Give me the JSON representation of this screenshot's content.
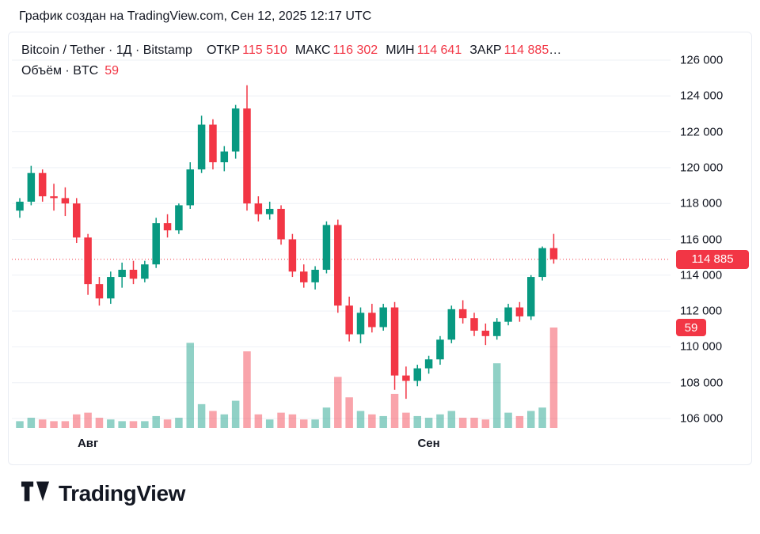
{
  "header": {
    "title": "График создан на TradingView.com, Сен 12, 2025 12:17 UTC"
  },
  "legend": {
    "series_title": "Bitcoin / Tether · 1Д · Bitstamp",
    "fields": [
      {
        "label": "ОТКР",
        "value": "115 510"
      },
      {
        "label": "МАКС",
        "value": "116 302"
      },
      {
        "label": "МИН",
        "value": "114 641"
      },
      {
        "label": "ЗАКР",
        "value": "114 885"
      }
    ],
    "ellipsis": "…",
    "volume_label": "Объём · BTC",
    "volume_value": "59"
  },
  "badges": {
    "price": "114 885",
    "volume": "59"
  },
  "footer": {
    "brand": "TradingView"
  },
  "colors": {
    "up": "#089981",
    "down": "#f23645",
    "vol_up": "rgba(8,153,129,0.45)",
    "vol_down": "rgba(242,54,69,0.45)",
    "grid": "#eef0f6",
    "text": "#131722",
    "badge": "#f23645"
  },
  "chart_data": {
    "type": "candlestick",
    "symbol": "Bitcoin / Tether",
    "interval": "1Д",
    "exchange": "Bitstamp",
    "last": {
      "open": 115510,
      "high": 116302,
      "low": 114641,
      "close": 114885,
      "volume": 59
    },
    "price_line": 114885,
    "y_range": [
      106000,
      126000
    ],
    "y_ticks": [
      126000,
      124000,
      122000,
      120000,
      118000,
      116000,
      114000,
      112000,
      110000,
      108000,
      106000
    ],
    "y_tick_labels": [
      "126 000",
      "124 000",
      "122 000",
      "120 000",
      "118 000",
      "116 000",
      "114 000",
      "112 000",
      "110 000",
      "108 000",
      "106 000"
    ],
    "x_ticks": [
      {
        "label": "Авг",
        "index": 6
      },
      {
        "label": "Сен",
        "index": 36
      }
    ],
    "columns": [
      "open",
      "high",
      "low",
      "close",
      "volume"
    ],
    "candles": [
      [
        117600,
        118300,
        117200,
        118100,
        4
      ],
      [
        118100,
        120100,
        117900,
        119700,
        6
      ],
      [
        119700,
        119900,
        118100,
        118400,
        5
      ],
      [
        118400,
        119100,
        117600,
        118300,
        4
      ],
      [
        118300,
        118900,
        117300,
        118000,
        4
      ],
      [
        118000,
        118300,
        115800,
        116100,
        8
      ],
      [
        116100,
        116300,
        112900,
        113500,
        9
      ],
      [
        113500,
        113900,
        112300,
        112700,
        6
      ],
      [
        112700,
        114200,
        112400,
        113900,
        5
      ],
      [
        113900,
        114700,
        113300,
        114300,
        4
      ],
      [
        114300,
        114800,
        113500,
        113800,
        4
      ],
      [
        113800,
        114800,
        113600,
        114600,
        4
      ],
      [
        114600,
        117200,
        114400,
        116900,
        7
      ],
      [
        116900,
        117400,
        116100,
        116500,
        5
      ],
      [
        116500,
        118000,
        116300,
        117900,
        6
      ],
      [
        117900,
        120300,
        117700,
        119900,
        50
      ],
      [
        119900,
        122900,
        119700,
        122400,
        14
      ],
      [
        122400,
        122700,
        119900,
        120300,
        10
      ],
      [
        120300,
        121200,
        119800,
        120900,
        8
      ],
      [
        120900,
        123500,
        120500,
        123300,
        16
      ],
      [
        123300,
        124600,
        117600,
        118000,
        45
      ],
      [
        118000,
        118400,
        117000,
        117400,
        8
      ],
      [
        117400,
        118100,
        117100,
        117700,
        5
      ],
      [
        117700,
        117900,
        115700,
        116000,
        9
      ],
      [
        116000,
        116300,
        113900,
        114200,
        8
      ],
      [
        114200,
        114600,
        113300,
        113600,
        5
      ],
      [
        113600,
        114500,
        113200,
        114300,
        5
      ],
      [
        114300,
        117000,
        114100,
        116800,
        12
      ],
      [
        116800,
        117100,
        111900,
        112300,
        30
      ],
      [
        112300,
        112800,
        110300,
        110700,
        18
      ],
      [
        110700,
        112200,
        110200,
        111900,
        10
      ],
      [
        111900,
        112400,
        110800,
        111100,
        8
      ],
      [
        111100,
        112400,
        110900,
        112200,
        7
      ],
      [
        112200,
        112500,
        107600,
        108400,
        20
      ],
      [
        108400,
        108900,
        107100,
        108100,
        9
      ],
      [
        108100,
        109000,
        107800,
        108800,
        7
      ],
      [
        108800,
        109500,
        108500,
        109300,
        6
      ],
      [
        109300,
        110600,
        109000,
        110400,
        8
      ],
      [
        110400,
        112300,
        110200,
        112100,
        10
      ],
      [
        112100,
        112600,
        111300,
        111600,
        6
      ],
      [
        111600,
        111900,
        110600,
        110900,
        6
      ],
      [
        110900,
        111300,
        110100,
        110600,
        5
      ],
      [
        110600,
        111600,
        110400,
        111400,
        38
      ],
      [
        111400,
        112400,
        111200,
        112200,
        9
      ],
      [
        112200,
        112500,
        111400,
        111700,
        7
      ],
      [
        111700,
        114000,
        111500,
        113900,
        10
      ],
      [
        113900,
        115600,
        113700,
        115510,
        12
      ],
      [
        115510,
        116302,
        114641,
        114885,
        59
      ]
    ]
  }
}
